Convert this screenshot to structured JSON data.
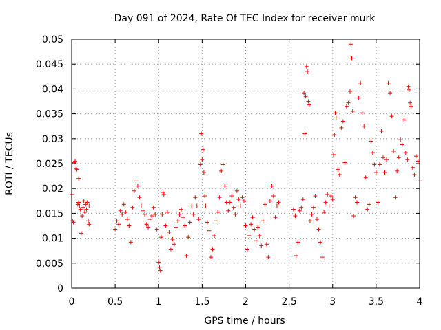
{
  "chart_data": {
    "type": "scatter",
    "title": "Day 091 of 2024, Rate Of TEC Index for receiver murk",
    "xlabel": "GPS time / hours",
    "ylabel": "ROTI / TECUs",
    "xlim": [
      0,
      4
    ],
    "ylim": [
      0,
      0.05
    ],
    "xticks": [
      0,
      0.5,
      1,
      1.5,
      2,
      2.5,
      3,
      3.5,
      4
    ],
    "xtick_labels": [
      "0",
      "0.5",
      "1",
      "1.5",
      "2",
      "2.5",
      "3",
      "3.5",
      "4"
    ],
    "yticks": [
      0,
      0.005,
      0.01,
      0.015,
      0.02,
      0.025,
      0.03,
      0.035,
      0.04,
      0.045,
      0.05
    ],
    "ytick_labels": [
      "0",
      "0.005",
      "0.01",
      "0.015",
      "0.02",
      "0.025",
      "0.03",
      "0.035",
      "0.04",
      "0.045",
      "0.05"
    ],
    "grid": true,
    "marker": "+",
    "color": "#ff0000",
    "series": [
      {
        "name": "ROTI",
        "points": [
          [
            0.0,
            0.0188
          ],
          [
            0.01,
            0.0135
          ],
          [
            0.02,
            0.0132
          ],
          [
            0.03,
            0.0252
          ],
          [
            0.04,
            0.0255
          ],
          [
            0.05,
            0.024
          ],
          [
            0.06,
            0.0238
          ],
          [
            0.07,
            0.0168
          ],
          [
            0.08,
            0.0172
          ],
          [
            0.08,
            0.022
          ],
          [
            0.09,
            0.0165
          ],
          [
            0.1,
            0.0158
          ],
          [
            0.11,
            0.011
          ],
          [
            0.12,
            0.0145
          ],
          [
            0.13,
            0.0162
          ],
          [
            0.14,
            0.0175
          ],
          [
            0.15,
            0.0152
          ],
          [
            0.16,
            0.0168
          ],
          [
            0.17,
            0.0158
          ],
          [
            0.18,
            0.0172
          ],
          [
            0.19,
            0.0135
          ],
          [
            0.2,
            0.0128
          ],
          [
            0.2,
            0.0165
          ],
          [
            0.5,
            0.0118
          ],
          [
            0.52,
            0.0135
          ],
          [
            0.54,
            0.0128
          ],
          [
            0.56,
            0.0155
          ],
          [
            0.58,
            0.0148
          ],
          [
            0.6,
            0.0168
          ],
          [
            0.62,
            0.0152
          ],
          [
            0.64,
            0.0138
          ],
          [
            0.66,
            0.0125
          ],
          [
            0.68,
            0.0092
          ],
          [
            0.7,
            0.0162
          ],
          [
            0.72,
            0.0195
          ],
          [
            0.74,
            0.0215
          ],
          [
            0.76,
            0.0205
          ],
          [
            0.78,
            0.0182
          ],
          [
            0.8,
            0.0165
          ],
          [
            0.82,
            0.0155
          ],
          [
            0.84,
            0.0148
          ],
          [
            0.86,
            0.0128
          ],
          [
            0.88,
            0.0122
          ],
          [
            0.9,
            0.0138
          ],
          [
            0.92,
            0.0145
          ],
          [
            0.94,
            0.0162
          ],
          [
            0.96,
            0.0148
          ],
          [
            0.98,
            0.0118
          ],
          [
            1.0,
            0.0052
          ],
          [
            1.01,
            0.0042
          ],
          [
            1.02,
            0.0035
          ],
          [
            1.03,
            0.0102
          ],
          [
            1.04,
            0.0148
          ],
          [
            1.05,
            0.0192
          ],
          [
            1.06,
            0.0188
          ],
          [
            1.08,
            0.0125
          ],
          [
            1.1,
            0.0152
          ],
          [
            1.12,
            0.0112
          ],
          [
            1.14,
            0.0078
          ],
          [
            1.16,
            0.0098
          ],
          [
            1.18,
            0.0088
          ],
          [
            1.2,
            0.0122
          ],
          [
            1.22,
            0.0135
          ],
          [
            1.24,
            0.0148
          ],
          [
            1.26,
            0.0158
          ],
          [
            1.28,
            0.0142
          ],
          [
            1.3,
            0.0125
          ],
          [
            1.32,
            0.0065
          ],
          [
            1.34,
            0.0102
          ],
          [
            1.36,
            0.0132
          ],
          [
            1.38,
            0.0165
          ],
          [
            1.4,
            0.0148
          ],
          [
            1.42,
            0.0182
          ],
          [
            1.44,
            0.0165
          ],
          [
            1.46,
            0.0138
          ],
          [
            1.48,
            0.0248
          ],
          [
            1.49,
            0.031
          ],
          [
            1.5,
            0.0258
          ],
          [
            1.51,
            0.0278
          ],
          [
            1.52,
            0.0232
          ],
          [
            1.53,
            0.0185
          ],
          [
            1.54,
            0.0165
          ],
          [
            1.56,
            0.0132
          ],
          [
            1.58,
            0.0115
          ],
          [
            1.6,
            0.0062
          ],
          [
            1.62,
            0.0078
          ],
          [
            1.64,
            0.0105
          ],
          [
            1.66,
            0.0135
          ],
          [
            1.68,
            0.0152
          ],
          [
            1.7,
            0.0182
          ],
          [
            1.72,
            0.0235
          ],
          [
            1.74,
            0.0248
          ],
          [
            1.76,
            0.0205
          ],
          [
            1.78,
            0.0172
          ],
          [
            1.8,
            0.0155
          ],
          [
            1.82,
            0.0172
          ],
          [
            1.84,
            0.0185
          ],
          [
            1.86,
            0.0162
          ],
          [
            1.88,
            0.0148
          ],
          [
            1.9,
            0.0195
          ],
          [
            1.92,
            0.0178
          ],
          [
            1.94,
            0.0165
          ],
          [
            1.96,
            0.0182
          ],
          [
            1.98,
            0.0175
          ],
          [
            2.0,
            0.0125
          ],
          [
            2.02,
            0.0078
          ],
          [
            2.04,
            0.0105
          ],
          [
            2.06,
            0.0128
          ],
          [
            2.08,
            0.0142
          ],
          [
            2.1,
            0.0118
          ],
          [
            2.12,
            0.0095
          ],
          [
            2.14,
            0.0122
          ],
          [
            2.16,
            0.0105
          ],
          [
            2.18,
            0.0085
          ],
          [
            2.2,
            0.0135
          ],
          [
            2.22,
            0.0168
          ],
          [
            2.24,
            0.0088
          ],
          [
            2.26,
            0.0062
          ],
          [
            2.28,
            0.0175
          ],
          [
            2.3,
            0.0205
          ],
          [
            2.32,
            0.0185
          ],
          [
            2.34,
            0.0142
          ],
          [
            2.36,
            0.0165
          ],
          [
            2.38,
            0.0172
          ],
          [
            2.55,
            0.0158
          ],
          [
            2.57,
            0.0145
          ],
          [
            2.58,
            0.0065
          ],
          [
            2.6,
            0.0092
          ],
          [
            2.62,
            0.0155
          ],
          [
            2.64,
            0.0162
          ],
          [
            2.66,
            0.0178
          ],
          [
            2.67,
            0.0392
          ],
          [
            2.68,
            0.031
          ],
          [
            2.69,
            0.0385
          ],
          [
            2.7,
            0.0445
          ],
          [
            2.71,
            0.0435
          ],
          [
            2.72,
            0.0375
          ],
          [
            2.73,
            0.0368
          ],
          [
            2.74,
            0.0135
          ],
          [
            2.76,
            0.0148
          ],
          [
            2.78,
            0.0162
          ],
          [
            2.8,
            0.0185
          ],
          [
            2.82,
            0.0138
          ],
          [
            2.84,
            0.0118
          ],
          [
            2.86,
            0.0092
          ],
          [
            2.88,
            0.0062
          ],
          [
            2.9,
            0.0152
          ],
          [
            2.92,
            0.0172
          ],
          [
            2.94,
            0.0188
          ],
          [
            2.96,
            0.0165
          ],
          [
            2.98,
            0.0185
          ],
          [
            3.0,
            0.0178
          ],
          [
            3.01,
            0.0268
          ],
          [
            3.02,
            0.0308
          ],
          [
            3.03,
            0.0352
          ],
          [
            3.04,
            0.0342
          ],
          [
            3.06,
            0.0238
          ],
          [
            3.08,
            0.0228
          ],
          [
            3.1,
            0.0322
          ],
          [
            3.12,
            0.0335
          ],
          [
            3.14,
            0.0252
          ],
          [
            3.16,
            0.0365
          ],
          [
            3.18,
            0.0372
          ],
          [
            3.2,
            0.0395
          ],
          [
            3.21,
            0.049
          ],
          [
            3.22,
            0.0462
          ],
          [
            3.23,
            0.0355
          ],
          [
            3.24,
            0.0145
          ],
          [
            3.26,
            0.0182
          ],
          [
            3.28,
            0.0172
          ],
          [
            3.3,
            0.0382
          ],
          [
            3.32,
            0.0412
          ],
          [
            3.34,
            0.0352
          ],
          [
            3.36,
            0.0325
          ],
          [
            3.38,
            0.0222
          ],
          [
            3.4,
            0.0158
          ],
          [
            3.42,
            0.0168
          ],
          [
            3.44,
            0.0295
          ],
          [
            3.46,
            0.0272
          ],
          [
            3.48,
            0.0248
          ],
          [
            3.5,
            0.0232
          ],
          [
            3.52,
            0.0172
          ],
          [
            3.54,
            0.0248
          ],
          [
            3.56,
            0.0315
          ],
          [
            3.58,
            0.0262
          ],
          [
            3.6,
            0.0232
          ],
          [
            3.62,
            0.0258
          ],
          [
            3.64,
            0.0412
          ],
          [
            3.66,
            0.0392
          ],
          [
            3.68,
            0.0345
          ],
          [
            3.7,
            0.0275
          ],
          [
            3.72,
            0.0182
          ],
          [
            3.74,
            0.0235
          ],
          [
            3.76,
            0.0262
          ],
          [
            3.78,
            0.0298
          ],
          [
            3.8,
            0.0288
          ],
          [
            3.82,
            0.0338
          ],
          [
            3.84,
            0.0272
          ],
          [
            3.86,
            0.0258
          ],
          [
            3.87,
            0.0405
          ],
          [
            3.88,
            0.0398
          ],
          [
            3.89,
            0.0372
          ],
          [
            3.9,
            0.0365
          ],
          [
            3.92,
            0.0242
          ],
          [
            3.94,
            0.0228
          ],
          [
            3.96,
            0.0265
          ],
          [
            3.98,
            0.0255
          ],
          [
            4.0,
            0.0215
          ]
        ]
      }
    ]
  }
}
